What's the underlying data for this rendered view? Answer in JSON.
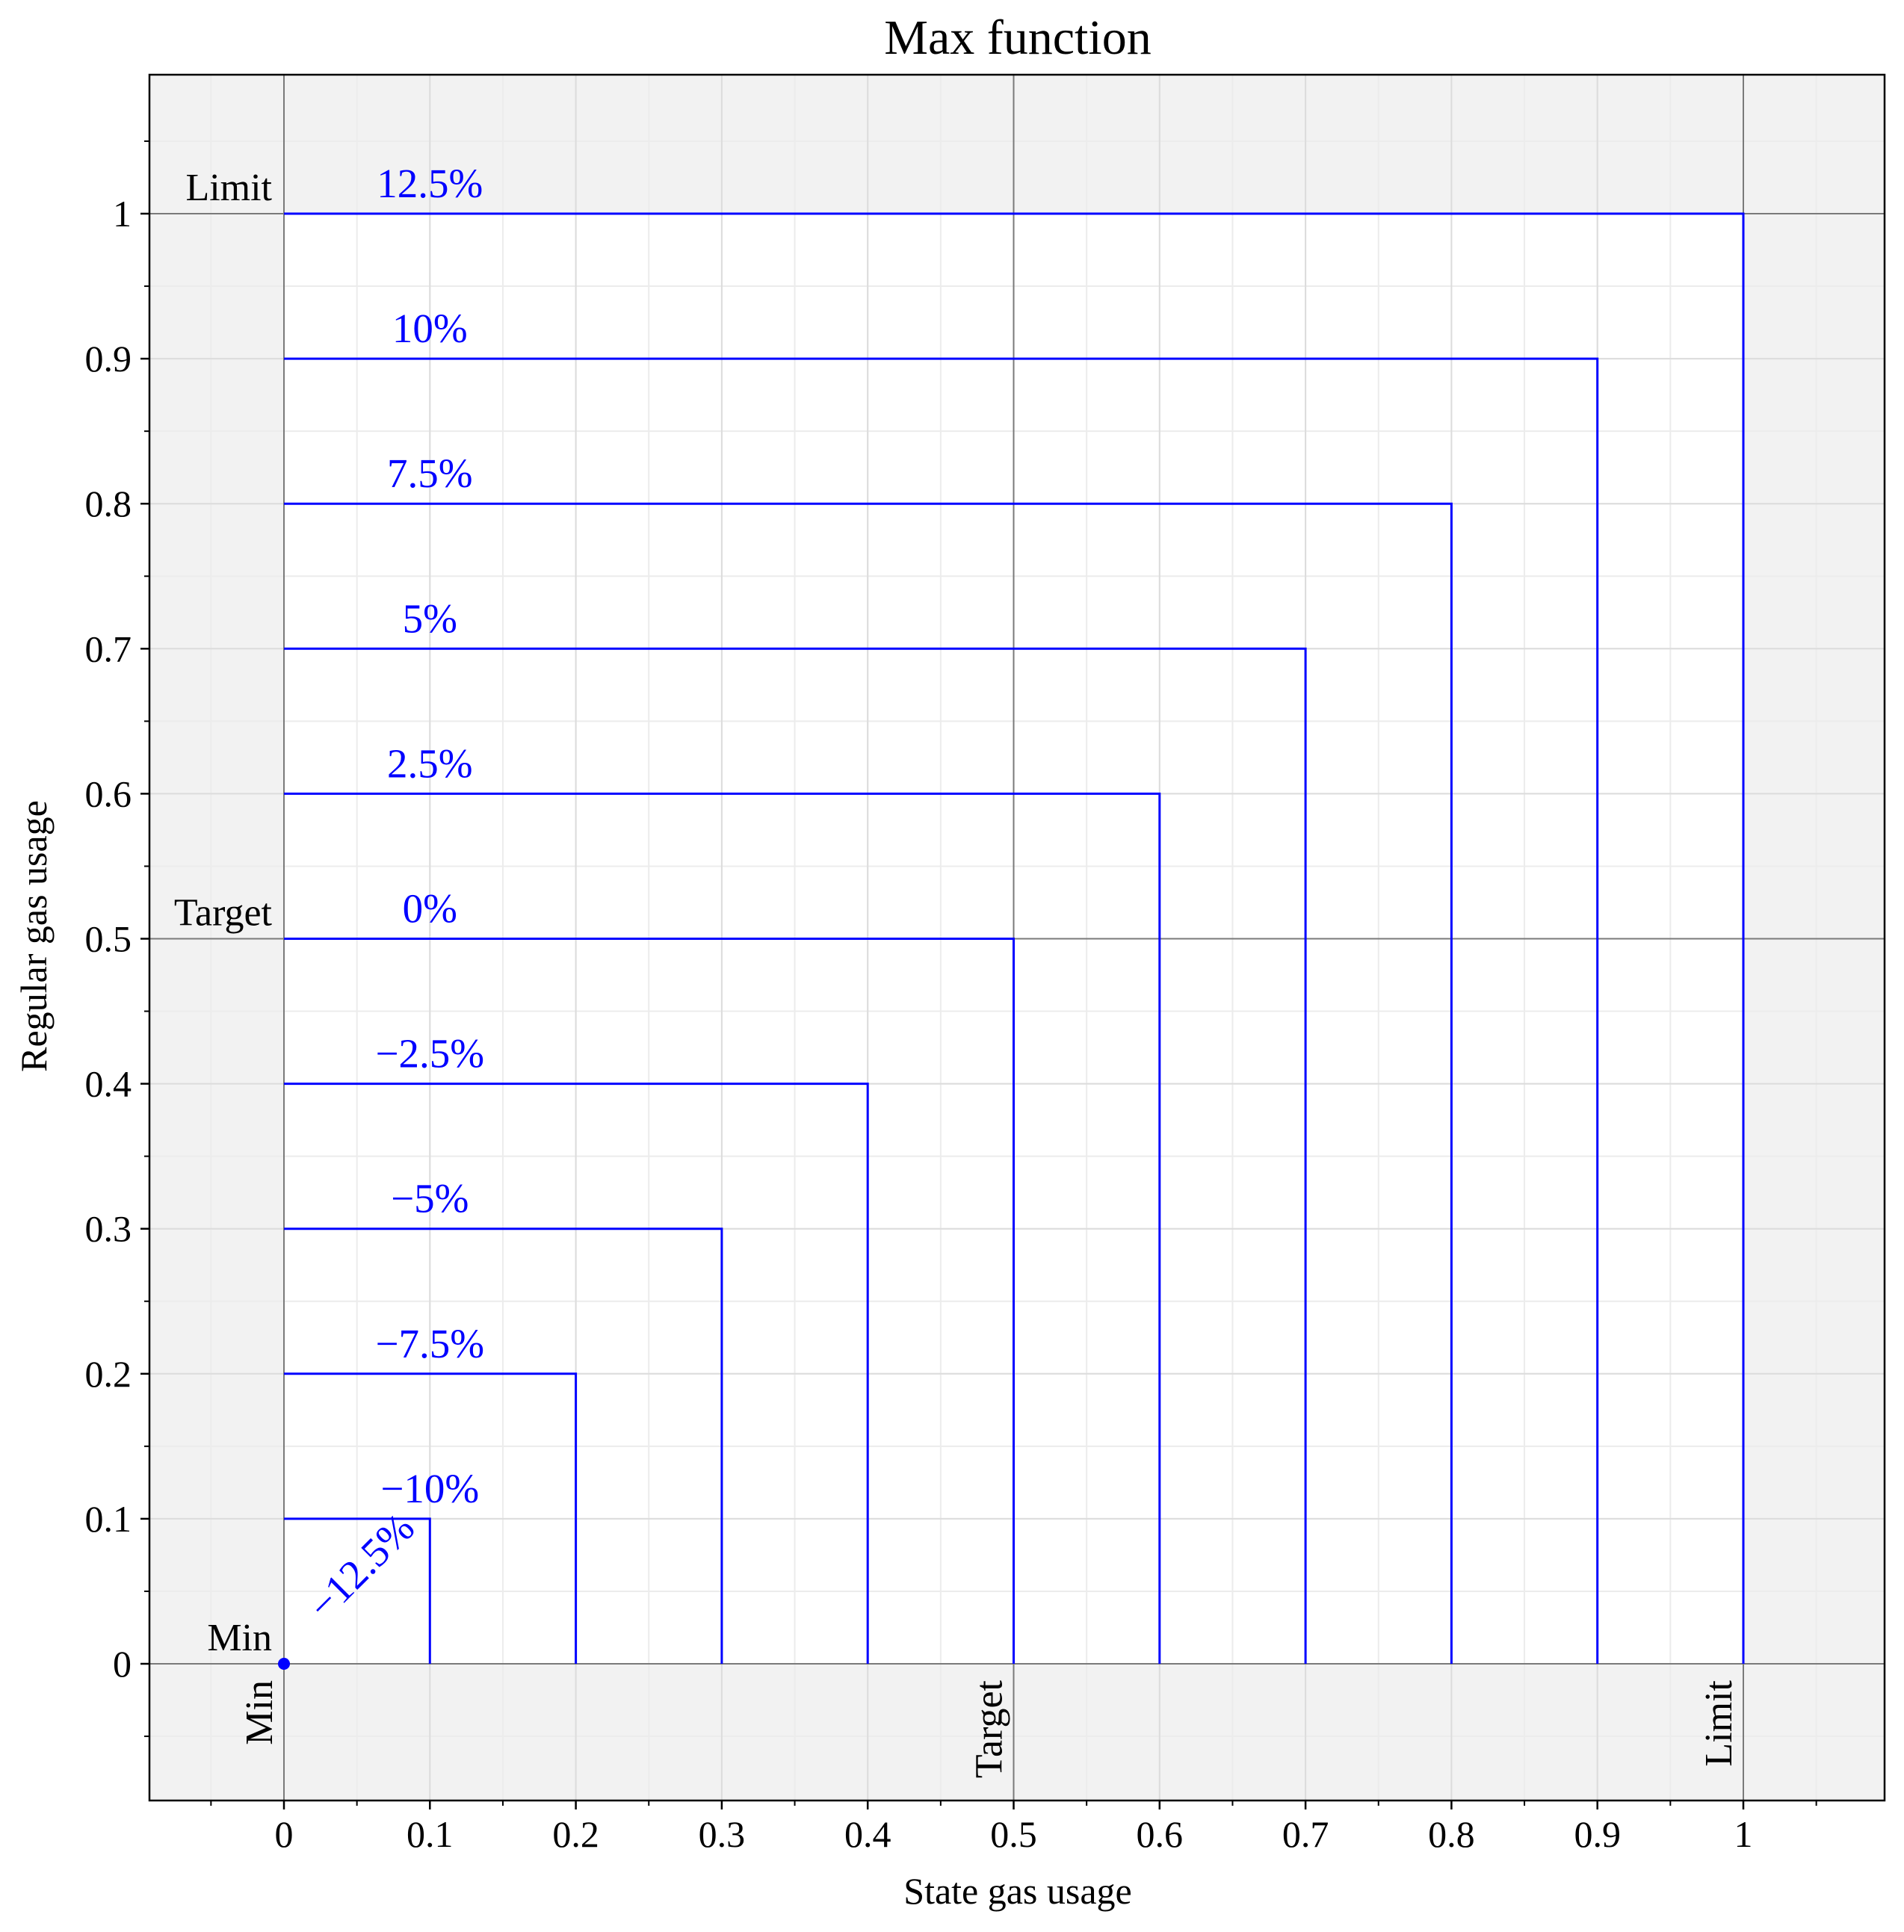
{
  "chart_data": {
    "type": "line",
    "title": "Max function",
    "xlabel": "State gas usage",
    "ylabel": "Regular gas usage",
    "xlim": [
      -0.093,
      1.093
    ],
    "ylim": [
      -0.093,
      1.097
    ],
    "grid": true,
    "x_ticks": [
      0,
      0.1,
      0.2,
      0.3,
      0.4,
      0.5,
      0.6,
      0.7,
      0.8,
      0.9,
      1
    ],
    "x_tick_labels": [
      "0",
      "0.1",
      "0.2",
      "0.3",
      "0.4",
      "0.5",
      "0.6",
      "0.7",
      "0.8",
      "0.9",
      "1"
    ],
    "y_ticks": [
      0,
      0.1,
      0.2,
      0.3,
      0.4,
      0.5,
      0.6,
      0.7,
      0.8,
      0.9,
      1
    ],
    "y_tick_labels": [
      "0",
      "0.1",
      "0.2",
      "0.3",
      "0.4",
      "0.5",
      "0.6",
      "0.7",
      "0.8",
      "0.9",
      "1"
    ],
    "reference_lines": {
      "x": [
        {
          "value": 0,
          "label": "Min"
        },
        {
          "value": 0.5,
          "label": "Target"
        },
        {
          "value": 1,
          "label": "Limit"
        }
      ],
      "y": [
        {
          "value": 0,
          "label": "Min"
        },
        {
          "value": 0.5,
          "label": "Target"
        },
        {
          "value": 1,
          "label": "Limit"
        }
      ]
    },
    "line_color": "#0000ff",
    "series": [
      {
        "label": "−12.5%",
        "level": 0.0
      },
      {
        "label": "−10%",
        "level": 0.1
      },
      {
        "label": "−7.5%",
        "level": 0.2
      },
      {
        "label": "−5%",
        "level": 0.3
      },
      {
        "label": "−2.5%",
        "level": 0.4
      },
      {
        "label": "0%",
        "level": 0.5
      },
      {
        "label": "2.5%",
        "level": 0.6
      },
      {
        "label": "5%",
        "level": 0.7
      },
      {
        "label": "7.5%",
        "level": 0.8
      },
      {
        "label": "10%",
        "level": 0.9
      },
      {
        "label": "12.5%",
        "level": 1.0
      }
    ]
  }
}
